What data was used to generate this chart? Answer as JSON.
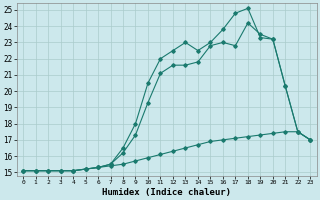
{
  "title": "",
  "xlabel": "Humidex (Indice chaleur)",
  "bg_color": "#cce8ec",
  "grid_color": "#aacccc",
  "line_color": "#1a7a6e",
  "xlim": [
    -0.5,
    23.5
  ],
  "ylim": [
    14.8,
    25.4
  ],
  "xticks": [
    0,
    1,
    2,
    3,
    4,
    5,
    6,
    7,
    8,
    9,
    10,
    11,
    12,
    13,
    14,
    15,
    16,
    17,
    18,
    19,
    20,
    21,
    22,
    23
  ],
  "yticks": [
    15,
    16,
    17,
    18,
    19,
    20,
    21,
    22,
    23,
    24,
    25
  ],
  "series1_x": [
    0,
    1,
    2,
    3,
    4,
    5,
    6,
    7,
    8,
    9,
    10,
    11,
    12,
    13,
    14,
    15,
    16,
    17,
    18,
    19,
    20,
    21,
    22,
    23
  ],
  "series1_y": [
    15.1,
    15.1,
    15.1,
    15.1,
    15.1,
    15.2,
    15.3,
    15.4,
    15.5,
    15.7,
    15.9,
    16.1,
    16.3,
    16.5,
    16.7,
    16.9,
    17.0,
    17.1,
    17.2,
    17.3,
    17.4,
    17.5,
    17.5,
    17.0
  ],
  "series2_x": [
    0,
    1,
    2,
    3,
    4,
    5,
    6,
    7,
    8,
    9,
    10,
    11,
    12,
    13,
    14,
    15,
    16,
    17,
    18,
    19,
    20,
    21,
    22,
    23
  ],
  "series2_y": [
    15.1,
    15.1,
    15.1,
    15.1,
    15.1,
    15.2,
    15.3,
    15.5,
    16.2,
    17.3,
    19.3,
    21.1,
    21.6,
    21.6,
    21.8,
    22.8,
    23.0,
    22.8,
    24.2,
    23.5,
    23.2,
    20.3,
    17.5,
    17.0
  ],
  "series3_x": [
    0,
    1,
    2,
    3,
    4,
    5,
    6,
    7,
    8,
    9,
    10,
    11,
    12,
    13,
    14,
    15,
    16,
    17,
    18,
    19,
    20,
    21,
    22,
    23
  ],
  "series3_y": [
    15.1,
    15.1,
    15.1,
    15.1,
    15.1,
    15.2,
    15.3,
    15.5,
    16.5,
    18.0,
    20.5,
    22.0,
    22.5,
    23.0,
    22.5,
    23.0,
    23.8,
    24.8,
    25.1,
    23.3,
    23.2,
    20.3,
    17.5,
    17.0
  ]
}
